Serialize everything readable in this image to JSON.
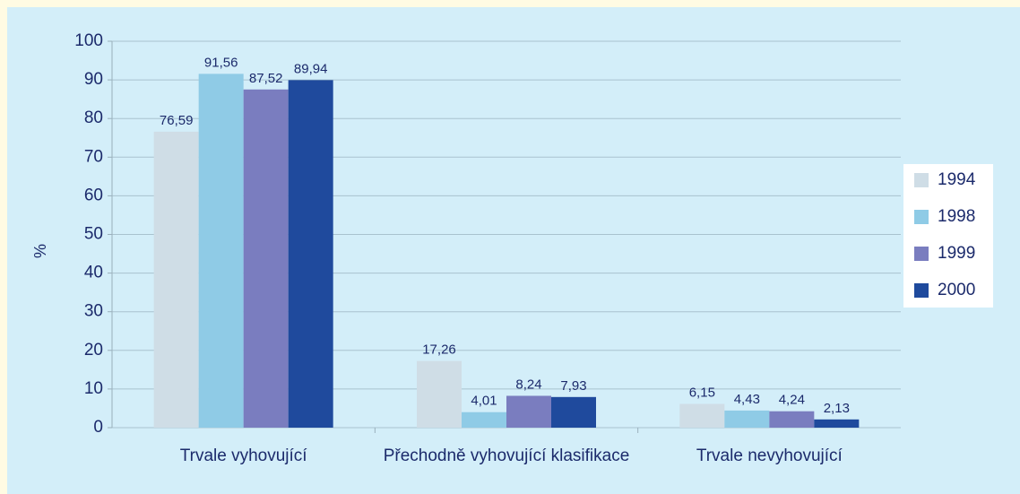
{
  "chart_data": {
    "type": "bar",
    "y_label": "%",
    "categories": [
      "Trvale vyhovující",
      "Přechodně vyhovující klasifikace",
      "Trvale nevyhovující"
    ],
    "series": [
      {
        "name": "1994",
        "color": "#cfdde6",
        "values": [
          76.59,
          17.26,
          6.15
        ],
        "value_labels": [
          "76,59",
          "17,26",
          "6,15"
        ]
      },
      {
        "name": "1998",
        "color": "#8fcbe6",
        "values": [
          91.56,
          4.01,
          4.43
        ],
        "value_labels": [
          "91,56",
          "4,01",
          "4,43"
        ]
      },
      {
        "name": "1999",
        "color": "#7a7dbf",
        "values": [
          87.52,
          8.24,
          4.24
        ],
        "value_labels": [
          "87,52",
          "8,24",
          "4,24"
        ]
      },
      {
        "name": "2000",
        "color": "#1f4a9d",
        "values": [
          89.94,
          7.93,
          2.13
        ],
        "value_labels": [
          "89,94",
          "7,93",
          "2,13"
        ]
      }
    ],
    "ylim": [
      0,
      100
    ],
    "yticks": [
      0,
      10,
      20,
      30,
      40,
      50,
      60,
      70,
      80,
      90,
      100
    ],
    "grid": true,
    "legend": "right"
  }
}
